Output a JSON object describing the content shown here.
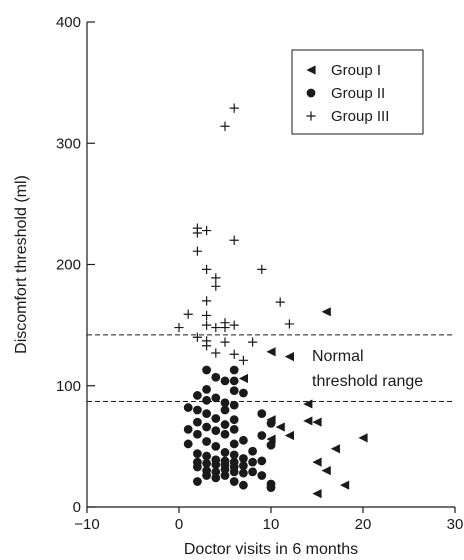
{
  "chart_data": {
    "type": "scatter",
    "xlabel": "Doctor visits in 6 months",
    "ylabel": "Discomfort threshold (ml)",
    "xlim": [
      -10,
      30
    ],
    "ylim": [
      0,
      400
    ],
    "xticks": [
      -10,
      0,
      10,
      20,
      30
    ],
    "yticks": [
      0,
      100,
      200,
      300,
      400
    ],
    "legend_position": "top-right",
    "reference_lines": [
      {
        "y": 142,
        "style": "dashed"
      },
      {
        "y": 87,
        "style": "dashed"
      }
    ],
    "annotation": [
      "Normal",
      "threshold range"
    ],
    "series": [
      {
        "name": "Group I",
        "marker": "triangle-left",
        "points": [
          [
            16,
            161
          ],
          [
            10,
            128
          ],
          [
            12,
            124
          ],
          [
            7,
            106
          ],
          [
            14,
            85
          ],
          [
            14,
            71
          ],
          [
            15,
            70
          ],
          [
            10,
            72
          ],
          [
            11,
            66
          ],
          [
            12,
            59
          ],
          [
            10,
            56
          ],
          [
            20,
            57
          ],
          [
            17,
            48
          ],
          [
            15,
            37
          ],
          [
            16,
            30
          ],
          [
            18,
            18
          ],
          [
            15,
            11
          ]
        ]
      },
      {
        "name": "Group II",
        "marker": "circle",
        "points": [
          [
            6,
            113
          ],
          [
            3,
            113
          ],
          [
            4,
            107
          ],
          [
            6,
            104
          ],
          [
            5,
            104
          ],
          [
            6,
            96
          ],
          [
            3,
            97
          ],
          [
            2,
            92
          ],
          [
            7,
            94
          ],
          [
            4,
            90
          ],
          [
            3,
            88
          ],
          [
            5,
            86
          ],
          [
            6,
            84
          ],
          [
            1,
            82
          ],
          [
            2,
            80
          ],
          [
            5,
            80
          ],
          [
            3,
            77
          ],
          [
            9,
            77
          ],
          [
            4,
            73
          ],
          [
            6,
            72
          ],
          [
            2,
            70
          ],
          [
            5,
            68
          ],
          [
            10,
            69
          ],
          [
            3,
            66
          ],
          [
            6,
            64
          ],
          [
            4,
            63
          ],
          [
            1,
            64
          ],
          [
            2,
            60
          ],
          [
            5,
            60
          ],
          [
            9,
            59
          ],
          [
            7,
            55
          ],
          [
            3,
            54
          ],
          [
            6,
            52
          ],
          [
            4,
            50
          ],
          [
            1,
            52
          ],
          [
            10,
            51
          ],
          [
            8,
            46
          ],
          [
            5,
            45
          ],
          [
            2,
            44
          ],
          [
            6,
            43
          ],
          [
            3,
            42
          ],
          [
            7,
            40
          ],
          [
            4,
            39
          ],
          [
            5,
            38
          ],
          [
            2,
            37
          ],
          [
            6,
            37
          ],
          [
            8,
            37
          ],
          [
            9,
            38
          ],
          [
            3,
            36
          ],
          [
            5,
            35
          ],
          [
            4,
            35
          ],
          [
            7,
            34
          ],
          [
            6,
            33
          ],
          [
            2,
            33
          ],
          [
            5,
            31
          ],
          [
            3,
            30
          ],
          [
            6,
            29
          ],
          [
            4,
            29
          ],
          [
            8,
            29
          ],
          [
            7,
            28
          ],
          [
            5,
            26
          ],
          [
            3,
            26
          ],
          [
            9,
            26
          ],
          [
            4,
            24
          ],
          [
            2,
            21
          ],
          [
            6,
            21
          ],
          [
            10,
            19
          ],
          [
            10,
            16
          ],
          [
            7,
            18
          ]
        ]
      },
      {
        "name": "Group III",
        "marker": "plus",
        "points": [
          [
            6,
            329
          ],
          [
            5,
            314
          ],
          [
            2,
            230
          ],
          [
            3,
            228
          ],
          [
            2,
            226
          ],
          [
            6,
            220
          ],
          [
            2,
            211
          ],
          [
            3,
            196
          ],
          [
            9,
            196
          ],
          [
            4,
            189
          ],
          [
            4,
            182
          ],
          [
            3,
            170
          ],
          [
            11,
            169
          ],
          [
            1,
            159
          ],
          [
            3,
            158
          ],
          [
            5,
            152
          ],
          [
            3,
            150
          ],
          [
            4,
            148
          ],
          [
            5,
            148
          ],
          [
            6,
            150
          ],
          [
            0,
            148
          ],
          [
            12,
            151
          ],
          [
            2,
            140
          ],
          [
            3,
            137
          ],
          [
            5,
            136
          ],
          [
            8,
            136
          ],
          [
            3,
            133
          ],
          [
            6,
            126
          ],
          [
            4,
            127
          ],
          [
            7,
            121
          ]
        ]
      }
    ]
  }
}
